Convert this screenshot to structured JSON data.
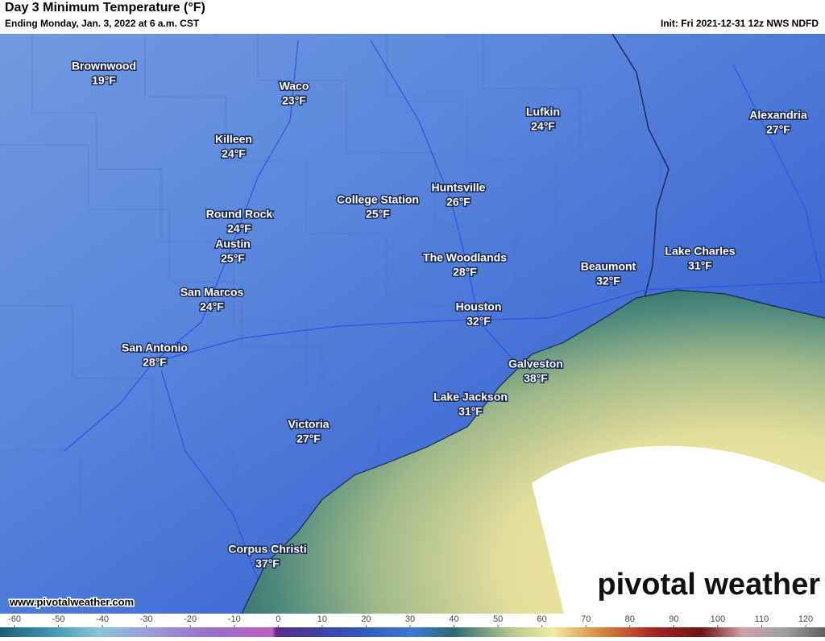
{
  "header": {
    "title": "Day 3 Minimum Temperature (°F)",
    "subtitle": "Ending Monday, Jan. 3, 2022 at 6 a.m. CST",
    "init": "Init: Fri 2021-12-31 12z NWS NDFD"
  },
  "cities": [
    {
      "name": "Brownwood",
      "temp": "19°F"
    },
    {
      "name": "Waco",
      "temp": "23°F"
    },
    {
      "name": "Killeen",
      "temp": "24°F"
    },
    {
      "name": "College Station",
      "temp": "25°F"
    },
    {
      "name": "Huntsville",
      "temp": "26°F"
    },
    {
      "name": "Round Rock",
      "temp": "24°F"
    },
    {
      "name": "Austin",
      "temp": "25°F"
    },
    {
      "name": "The Woodlands",
      "temp": "28°F"
    },
    {
      "name": "Beaumont",
      "temp": "32°F"
    },
    {
      "name": "Lake Charles",
      "temp": "31°F"
    },
    {
      "name": "Lufkin",
      "temp": "24°F"
    },
    {
      "name": "Alexandria",
      "temp": "27°F"
    },
    {
      "name": "San Marcos",
      "temp": "24°F"
    },
    {
      "name": "Houston",
      "temp": "32°F"
    },
    {
      "name": "San Antonio",
      "temp": "28°F"
    },
    {
      "name": "Galveston",
      "temp": "38°F"
    },
    {
      "name": "Lake Jackson",
      "temp": "31°F"
    },
    {
      "name": "Victoria",
      "temp": "27°F"
    },
    {
      "name": "Corpus Christi",
      "temp": "37°F"
    }
  ],
  "footer": {
    "url": "www.pivotalweather.com",
    "brand": "pivotal weather"
  },
  "colorbar": {
    "ticks": [
      -60,
      -50,
      -40,
      -30,
      -20,
      -10,
      0,
      10,
      20,
      30,
      40,
      50,
      60,
      70,
      80,
      90,
      100,
      110,
      120
    ]
  }
}
